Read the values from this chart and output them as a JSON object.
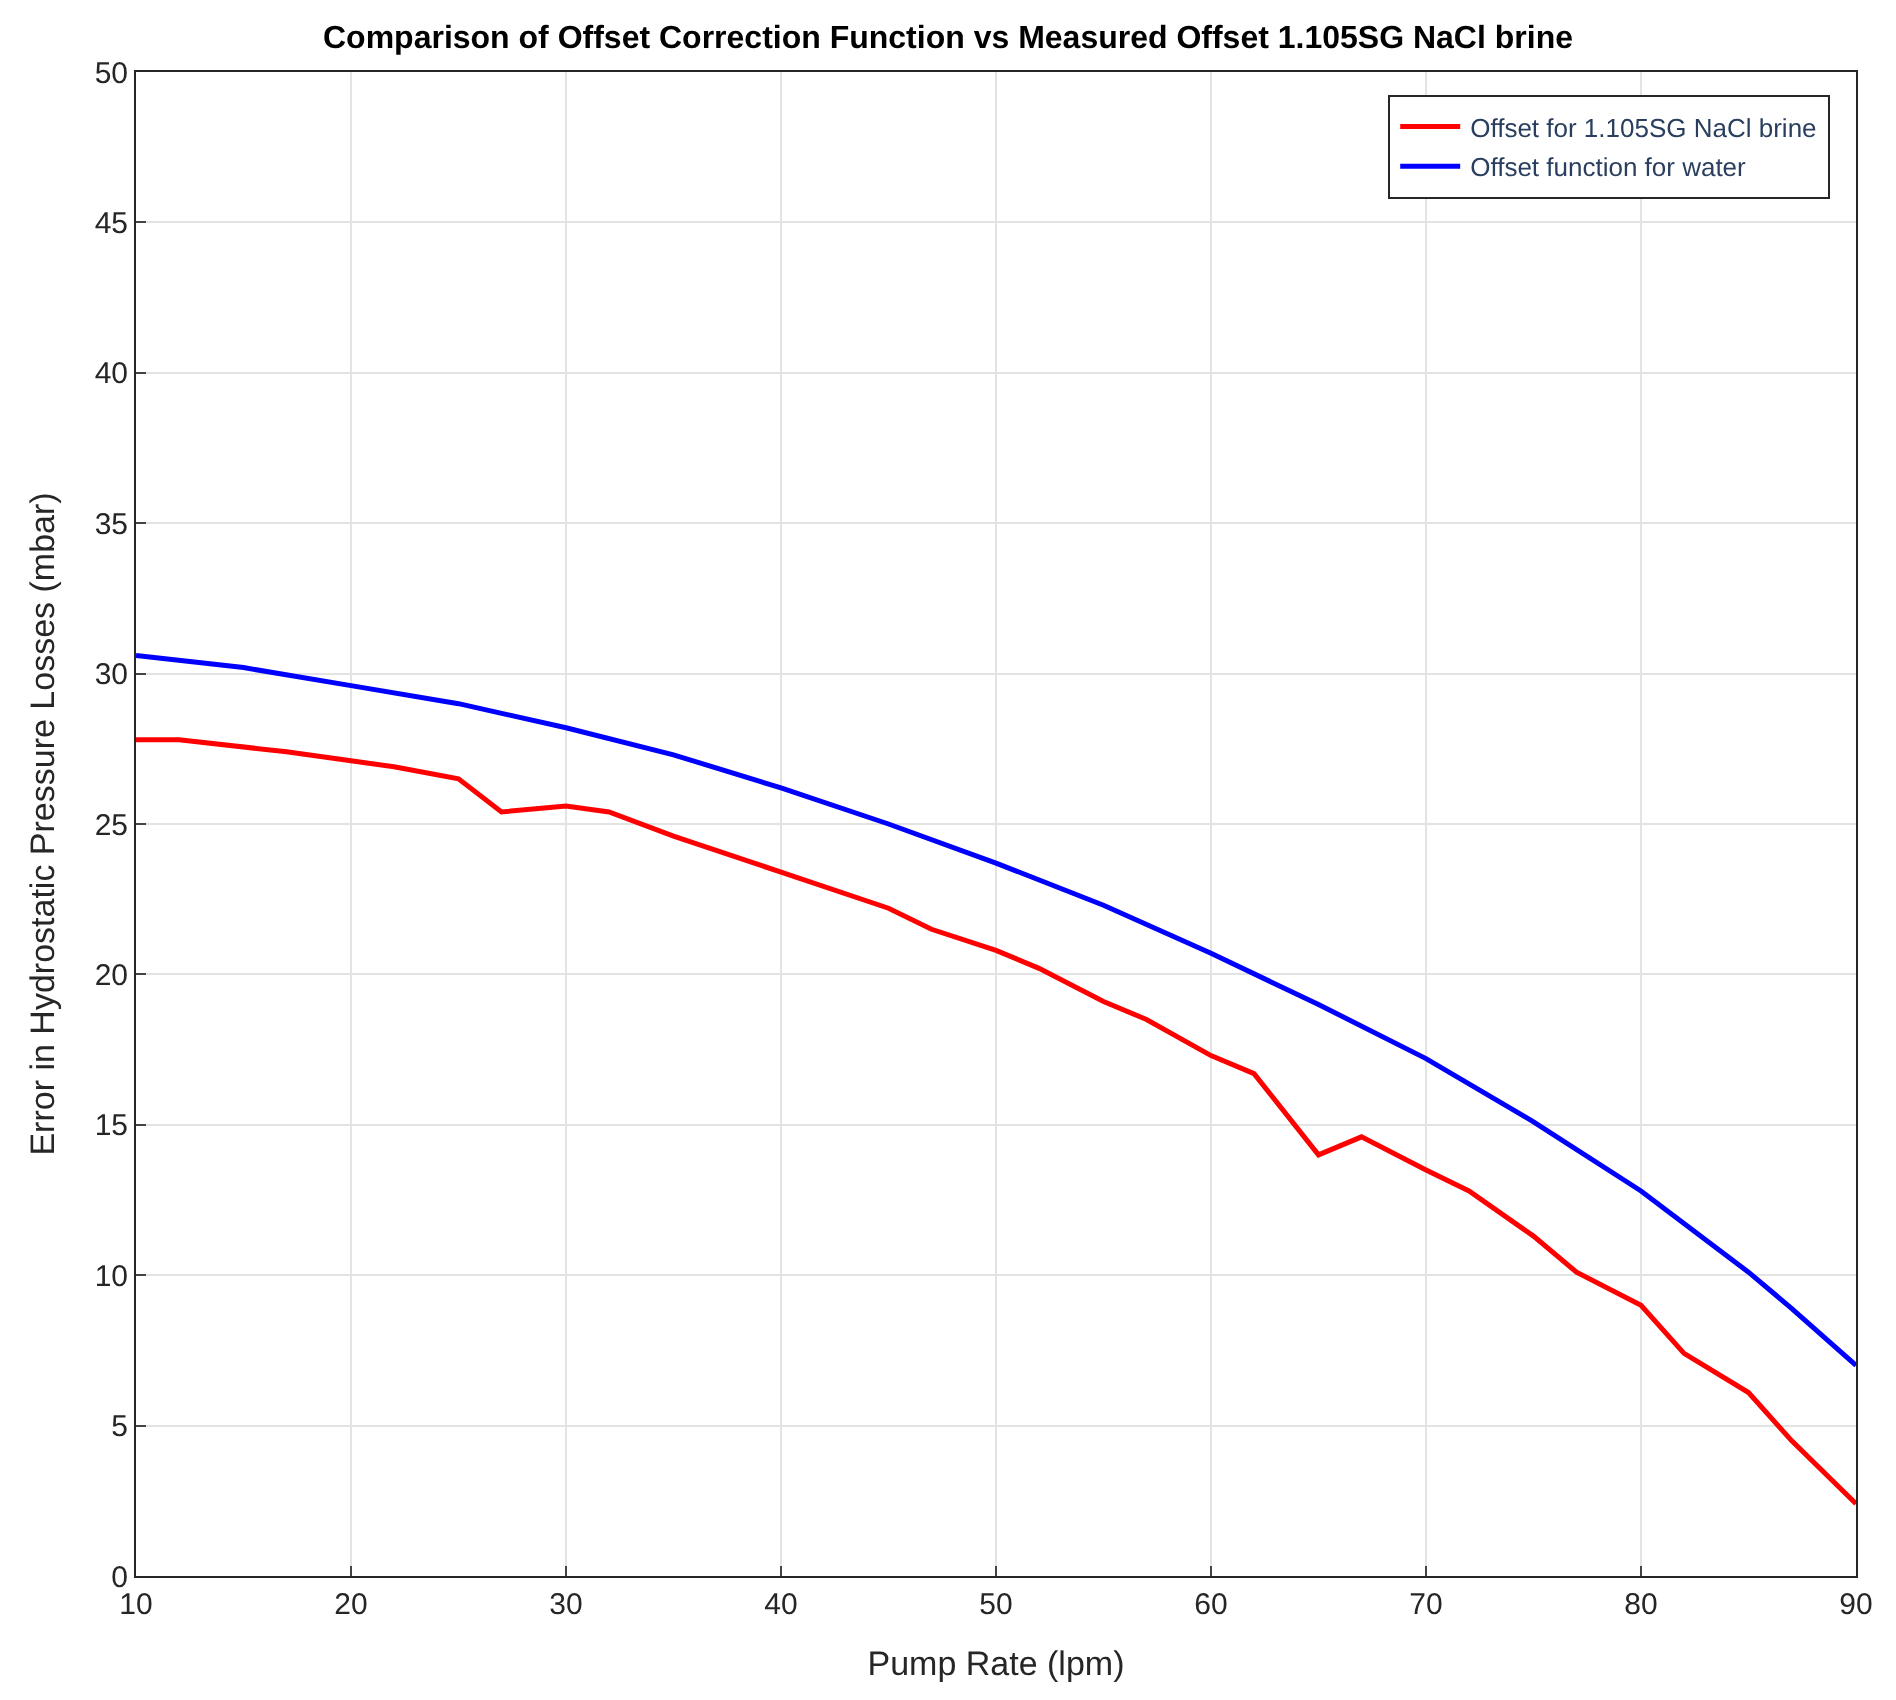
{
  "chart_data": {
    "type": "line",
    "title": "Comparison of Offset Correction Function vs Measured Offset 1.105SG NaCl brine",
    "xlabel": "Pump Rate (lpm)",
    "ylabel": "Error in Hydrostatic Pressure Losses (mbar)",
    "xlim": [
      10,
      90
    ],
    "xticks": [
      10,
      20,
      30,
      40,
      50,
      60,
      70,
      80,
      90
    ],
    "ylim": [
      0,
      50
    ],
    "yticks": [
      0,
      5,
      10,
      15,
      20,
      25,
      30,
      35,
      40,
      45,
      50
    ],
    "grid": true,
    "legend": "top right",
    "marker": "none",
    "line_style": "solid",
    "series": [
      {
        "name": "Offset for 1.105SG NaCl brine",
        "color": "#ff0000",
        "x": [
          10,
          12,
          17,
          20,
          22,
          25,
          27,
          30,
          32,
          35,
          40,
          45,
          47,
          50,
          52,
          55,
          57,
          60,
          62,
          65,
          67,
          70,
          72,
          75,
          77,
          80,
          82,
          85,
          87,
          90
        ],
        "values": [
          27.8,
          27.8,
          27.4,
          27.1,
          26.9,
          26.5,
          25.4,
          25.6,
          25.4,
          24.6,
          23.4,
          22.2,
          21.5,
          20.8,
          20.2,
          19.1,
          18.5,
          17.3,
          16.7,
          14.0,
          14.6,
          13.5,
          12.8,
          11.3,
          10.1,
          9.0,
          7.4,
          6.1,
          4.5,
          2.4
        ]
      },
      {
        "name": "Offset function for water",
        "color": "#0000ff",
        "x": [
          10,
          15,
          20,
          25,
          30,
          35,
          40,
          45,
          50,
          55,
          60,
          65,
          70,
          75,
          80,
          85,
          87,
          90
        ],
        "values": [
          30.6,
          30.2,
          29.6,
          29.0,
          28.2,
          27.3,
          26.2,
          25.0,
          23.7,
          22.3,
          20.7,
          19.0,
          17.2,
          15.1,
          12.8,
          10.1,
          8.9,
          7.0
        ]
      }
    ]
  }
}
